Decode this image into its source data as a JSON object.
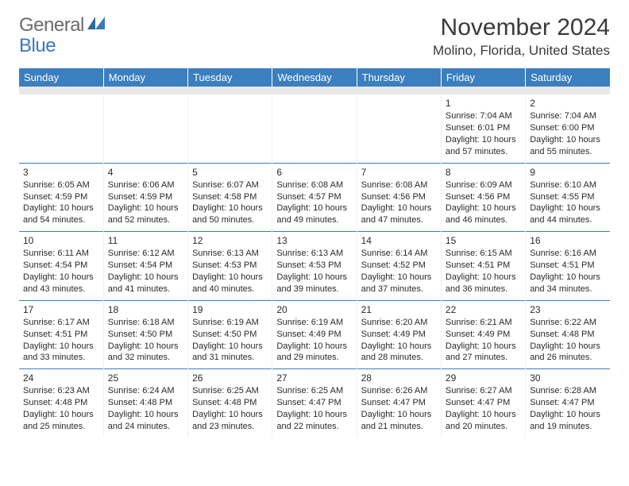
{
  "logo": {
    "general": "General",
    "blue": "Blue"
  },
  "header": {
    "month_title": "November 2024",
    "location": "Molino, Florida, United States"
  },
  "day_headers": [
    "Sunday",
    "Monday",
    "Tuesday",
    "Wednesday",
    "Thursday",
    "Friday",
    "Saturday"
  ],
  "weeks": [
    [
      null,
      null,
      null,
      null,
      null,
      {
        "n": "1",
        "sr": "7:04 AM",
        "ss": "6:01 PM",
        "dl": "10 hours and 57 minutes."
      },
      {
        "n": "2",
        "sr": "7:04 AM",
        "ss": "6:00 PM",
        "dl": "10 hours and 55 minutes."
      }
    ],
    [
      {
        "n": "3",
        "sr": "6:05 AM",
        "ss": "4:59 PM",
        "dl": "10 hours and 54 minutes."
      },
      {
        "n": "4",
        "sr": "6:06 AM",
        "ss": "4:59 PM",
        "dl": "10 hours and 52 minutes."
      },
      {
        "n": "5",
        "sr": "6:07 AM",
        "ss": "4:58 PM",
        "dl": "10 hours and 50 minutes."
      },
      {
        "n": "6",
        "sr": "6:08 AM",
        "ss": "4:57 PM",
        "dl": "10 hours and 49 minutes."
      },
      {
        "n": "7",
        "sr": "6:08 AM",
        "ss": "4:56 PM",
        "dl": "10 hours and 47 minutes."
      },
      {
        "n": "8",
        "sr": "6:09 AM",
        "ss": "4:56 PM",
        "dl": "10 hours and 46 minutes."
      },
      {
        "n": "9",
        "sr": "6:10 AM",
        "ss": "4:55 PM",
        "dl": "10 hours and 44 minutes."
      }
    ],
    [
      {
        "n": "10",
        "sr": "6:11 AM",
        "ss": "4:54 PM",
        "dl": "10 hours and 43 minutes."
      },
      {
        "n": "11",
        "sr": "6:12 AM",
        "ss": "4:54 PM",
        "dl": "10 hours and 41 minutes."
      },
      {
        "n": "12",
        "sr": "6:13 AM",
        "ss": "4:53 PM",
        "dl": "10 hours and 40 minutes."
      },
      {
        "n": "13",
        "sr": "6:13 AM",
        "ss": "4:53 PM",
        "dl": "10 hours and 39 minutes."
      },
      {
        "n": "14",
        "sr": "6:14 AM",
        "ss": "4:52 PM",
        "dl": "10 hours and 37 minutes."
      },
      {
        "n": "15",
        "sr": "6:15 AM",
        "ss": "4:51 PM",
        "dl": "10 hours and 36 minutes."
      },
      {
        "n": "16",
        "sr": "6:16 AM",
        "ss": "4:51 PM",
        "dl": "10 hours and 34 minutes."
      }
    ],
    [
      {
        "n": "17",
        "sr": "6:17 AM",
        "ss": "4:51 PM",
        "dl": "10 hours and 33 minutes."
      },
      {
        "n": "18",
        "sr": "6:18 AM",
        "ss": "4:50 PM",
        "dl": "10 hours and 32 minutes."
      },
      {
        "n": "19",
        "sr": "6:19 AM",
        "ss": "4:50 PM",
        "dl": "10 hours and 31 minutes."
      },
      {
        "n": "20",
        "sr": "6:19 AM",
        "ss": "4:49 PM",
        "dl": "10 hours and 29 minutes."
      },
      {
        "n": "21",
        "sr": "6:20 AM",
        "ss": "4:49 PM",
        "dl": "10 hours and 28 minutes."
      },
      {
        "n": "22",
        "sr": "6:21 AM",
        "ss": "4:49 PM",
        "dl": "10 hours and 27 minutes."
      },
      {
        "n": "23",
        "sr": "6:22 AM",
        "ss": "4:48 PM",
        "dl": "10 hours and 26 minutes."
      }
    ],
    [
      {
        "n": "24",
        "sr": "6:23 AM",
        "ss": "4:48 PM",
        "dl": "10 hours and 25 minutes."
      },
      {
        "n": "25",
        "sr": "6:24 AM",
        "ss": "4:48 PM",
        "dl": "10 hours and 24 minutes."
      },
      {
        "n": "26",
        "sr": "6:25 AM",
        "ss": "4:48 PM",
        "dl": "10 hours and 23 minutes."
      },
      {
        "n": "27",
        "sr": "6:25 AM",
        "ss": "4:47 PM",
        "dl": "10 hours and 22 minutes."
      },
      {
        "n": "28",
        "sr": "6:26 AM",
        "ss": "4:47 PM",
        "dl": "10 hours and 21 minutes."
      },
      {
        "n": "29",
        "sr": "6:27 AM",
        "ss": "4:47 PM",
        "dl": "10 hours and 20 minutes."
      },
      {
        "n": "30",
        "sr": "6:28 AM",
        "ss": "4:47 PM",
        "dl": "10 hours and 19 minutes."
      }
    ]
  ],
  "labels": {
    "sunrise": "Sunrise: ",
    "sunset": "Sunset: ",
    "daylight": "Daylight: "
  },
  "style": {
    "header_bg": "#3b7fbf",
    "header_fg": "#ffffff",
    "rule_color": "#3b7fbf",
    "spacer_bg": "#e8e8e8",
    "text_color": "#2a2a2a",
    "logo_gray": "#6b6b6b",
    "logo_blue": "#3a7ab8"
  }
}
